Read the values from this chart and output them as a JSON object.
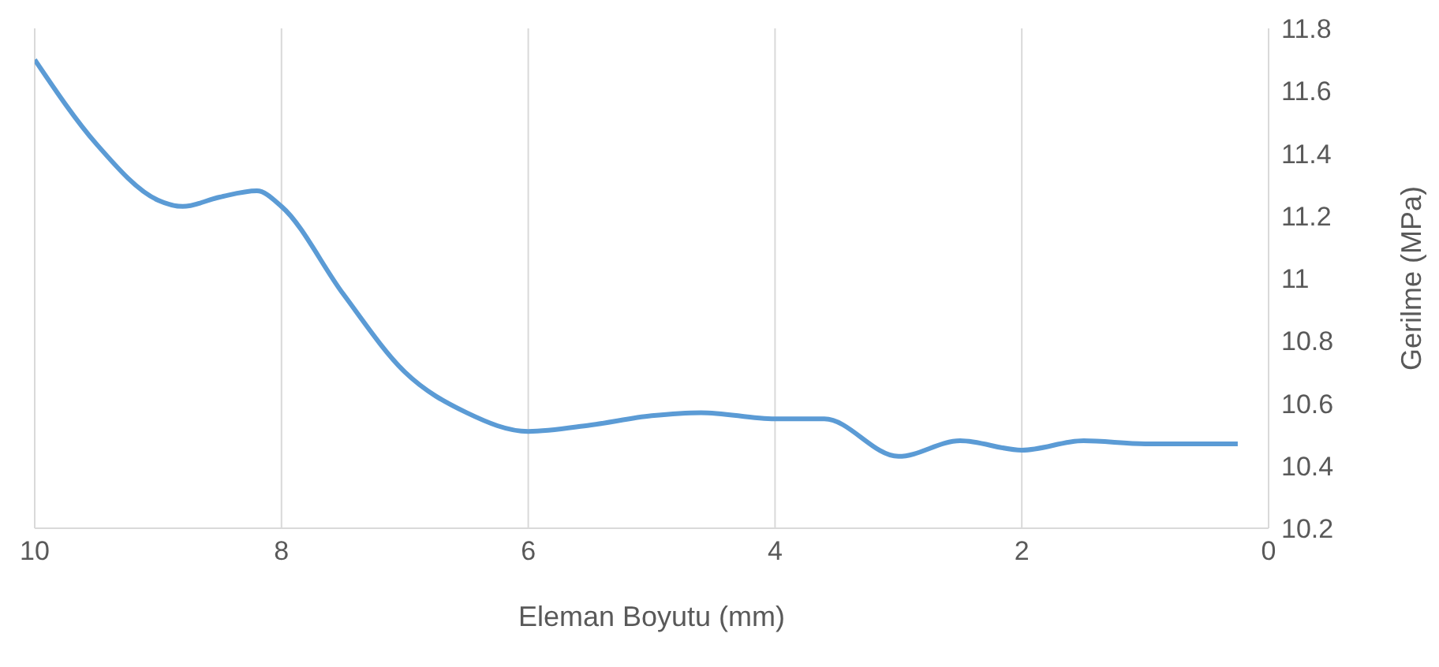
{
  "chart_data": {
    "type": "line",
    "xlabel": "Eleman Boyutu (mm)",
    "ylabel": "Gerilme (MPa)",
    "x": [
      10,
      9.5,
      9,
      8.8,
      8.5,
      8.2,
      8,
      7.5,
      7,
      6.5,
      6,
      5.5,
      5,
      4.6,
      4,
      3.6,
      3,
      2.5,
      2,
      1.5,
      1,
      0.25
    ],
    "series": [
      {
        "color": "#5b9bd5",
        "values": [
          11.7,
          11.43,
          11.25,
          11.23,
          11.26,
          11.28,
          11.23,
          10.95,
          10.7,
          10.57,
          10.51,
          10.53,
          10.56,
          10.57,
          10.55,
          10.55,
          10.43,
          10.48,
          10.45,
          10.48,
          10.47,
          10.47
        ]
      }
    ],
    "xlim": [
      10,
      0
    ],
    "xticks": [
      10,
      8,
      6,
      4,
      2,
      0
    ],
    "ylim": [
      10.2,
      11.8
    ],
    "yticks": [
      10.2,
      10.4,
      10.6,
      10.8,
      11,
      11.2,
      11.4,
      11.6,
      11.8
    ],
    "grid": "x",
    "marker": "none",
    "line_style": "solid"
  }
}
